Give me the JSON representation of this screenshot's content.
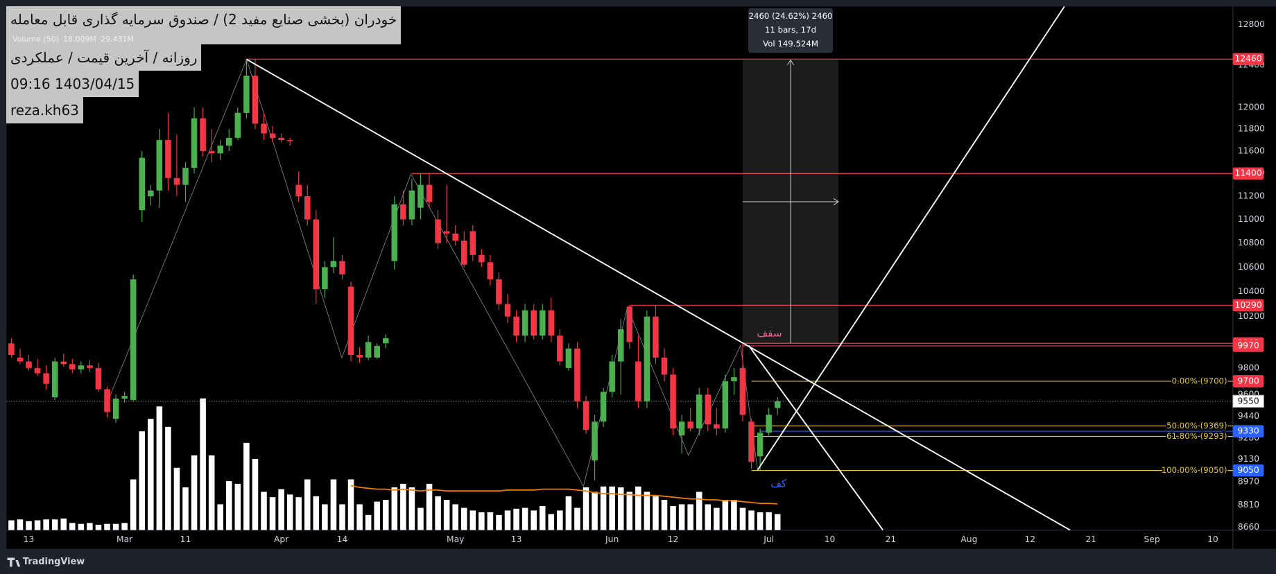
{
  "chart_data": {
    "type": "candlestick",
    "title_lines": [
      "خودران (بخشی صنایع مفید 2) / صندوق سرمایه گذاری قابل معامله",
      "روزانه / آخرین قیمت / عملکردی",
      "1403/04/15 09:16",
      "reza.kh63"
    ],
    "log_scale": true,
    "grid": false,
    "up_color": "#4caf50",
    "down_color": "#f23645",
    "volume_color": "#ffffff",
    "volume_ma_color": "#f57c00",
    "ylim": [
      8640,
      12980
    ],
    "yticks": [
      12800,
      12400,
      12000,
      11800,
      11600,
      11400,
      11200,
      11000,
      10800,
      10600,
      10400,
      10200,
      9800,
      9600,
      9440,
      9280,
      9130,
      8970,
      8810,
      8660
    ],
    "xlim": [
      -0.56,
      140.3
    ],
    "xticks": [
      {
        "value": 2,
        "label": "13"
      },
      {
        "value": 13,
        "label": "Mar"
      },
      {
        "value": 20,
        "label": "11"
      },
      {
        "value": 31,
        "label": "Apr"
      },
      {
        "value": 38,
        "label": "14"
      },
      {
        "value": 51,
        "label": "May"
      },
      {
        "value": 58,
        "label": "13"
      },
      {
        "value": 69,
        "label": "Jun"
      },
      {
        "value": 76,
        "label": "12"
      },
      {
        "value": 87,
        "label": "Jul"
      },
      {
        "value": 94,
        "label": "10"
      },
      {
        "value": 101,
        "label": "21"
      },
      {
        "value": 110,
        "label": "Aug"
      },
      {
        "value": 117,
        "label": "12"
      },
      {
        "value": 124,
        "label": "21"
      },
      {
        "value": 131,
        "label": "Sep"
      },
      {
        "value": 138,
        "label": "10"
      }
    ],
    "open": [
      9990,
      9880,
      9850,
      9800,
      9760,
      9580,
      9850,
      9830,
      9790,
      9820,
      9800,
      9640,
      9420,
      9570,
      9560,
      11080,
      11200,
      11250,
      11700,
      11360,
      11300,
      11450,
      11900,
      11600,
      11580,
      11650,
      11720,
      11950,
      12300,
      11850,
      11760,
      11720,
      11700,
      11300,
      11200,
      11000,
      10420,
      10600,
      10650,
      10440,
      9900,
      9880,
      9880,
      9990,
      10650,
      11130,
      11000,
      11100,
      11300,
      11000,
      10900,
      10880,
      10820,
      10900,
      10700,
      10640,
      10500,
      10300,
      10200,
      10050,
      10250,
      10050,
      10250,
      10050,
      9800,
      9950,
      9550,
      9120,
      9400,
      9620,
      9850,
      10280,
      9850,
      9550,
      10200,
      9880,
      9750,
      9300,
      9400,
      9350,
      9600,
      9380,
      9350,
      9700,
      9800,
      9400,
      9150,
      9320,
      9500
    ],
    "high": [
      10030,
      9950,
      9900,
      9870,
      9820,
      9880,
      9910,
      9870,
      9850,
      9860,
      9840,
      9660,
      9600,
      9620,
      10540,
      11600,
      11300,
      11800,
      11950,
      11750,
      11500,
      12000,
      12000,
      11800,
      11700,
      11800,
      12000,
      12460,
      12460,
      11950,
      11830,
      11760,
      11720,
      11420,
      11300,
      11080,
      10650,
      10850,
      10700,
      10480,
      9960,
      10050,
      9990,
      10060,
      11200,
      11250,
      11350,
      11400,
      11400,
      11080,
      11300,
      10950,
      10900,
      10950,
      10750,
      10700,
      10560,
      10380,
      10250,
      10300,
      10300,
      10300,
      10350,
      10100,
      9990,
      10000,
      9590,
      9450,
      9650,
      9900,
      10180,
      10290,
      10050,
      10250,
      10290,
      9950,
      9800,
      9450,
      9500,
      9650,
      9650,
      9500,
      9750,
      9800,
      9990,
      9420,
      9350,
      9500,
      9580
    ],
    "low": [
      9880,
      9830,
      9780,
      9740,
      9640,
      9560,
      9810,
      9760,
      9760,
      9770,
      9620,
      9430,
      9390,
      9540,
      9550,
      10980,
      11120,
      11100,
      11250,
      11200,
      11150,
      11400,
      11550,
      11500,
      11520,
      11600,
      11700,
      11900,
      11800,
      11700,
      11680,
      11680,
      11650,
      11150,
      10950,
      10300,
      10350,
      10550,
      10500,
      9850,
      9840,
      9860,
      9870,
      9950,
      10580,
      10950,
      10950,
      11000,
      11100,
      10750,
      10800,
      10780,
      10600,
      10650,
      10600,
      10450,
      10250,
      10150,
      10000,
      10000,
      10020,
      10020,
      10000,
      9820,
      9780,
      9500,
      9310,
      8980,
      9360,
      9580,
      9600,
      9950,
      9500,
      9500,
      9830,
      9700,
      9300,
      9170,
      9330,
      9300,
      9330,
      9300,
      9320,
      9600,
      9400,
      9060,
      9050,
      9300,
      9450
    ],
    "close": [
      9900,
      9850,
      9800,
      9760,
      9680,
      9850,
      9830,
      9790,
      9820,
      9800,
      9640,
      9470,
      9570,
      9590,
      10500,
      11540,
      11250,
      11700,
      11360,
      11300,
      11450,
      11900,
      11600,
      11580,
      11650,
      11720,
      11950,
      12300,
      11850,
      11760,
      11720,
      11700,
      11690,
      11200,
      11000,
      10420,
      10600,
      10650,
      10540,
      9900,
      9880,
      10000,
      9970,
      10030,
      11130,
      11000,
      11250,
      11300,
      11150,
      10800,
      10880,
      10820,
      10620,
      10700,
      10640,
      10500,
      10300,
      10200,
      10050,
      10250,
      10050,
      10250,
      10050,
      9850,
      9950,
      9550,
      9340,
      9400,
      9620,
      9850,
      10100,
      10000,
      9550,
      10200,
      9880,
      9750,
      9350,
      9400,
      9350,
      9600,
      9380,
      9350,
      9700,
      9730,
      9450,
      9110,
      9320,
      9450,
      9550
    ],
    "volume": [
      11,
      12,
      10,
      11,
      12,
      12,
      13,
      8,
      7,
      8,
      6,
      7,
      7,
      8,
      57,
      111,
      125,
      139,
      116,
      70,
      48,
      84,
      148,
      84,
      29,
      55,
      52,
      98,
      80,
      43,
      37,
      46,
      40,
      37,
      57,
      38,
      29,
      57,
      29,
      57,
      29,
      17,
      32,
      34,
      48,
      52,
      48,
      25,
      52,
      38,
      34,
      29,
      25,
      22,
      20,
      20,
      17,
      22,
      24,
      25,
      22,
      27,
      18,
      22,
      38,
      25,
      48,
      43,
      49,
      49,
      48,
      43,
      49,
      43,
      38,
      34,
      27,
      29,
      29,
      43,
      29,
      25,
      34,
      34,
      25,
      22,
      20,
      20,
      18.009
    ],
    "volume_ma": [
      null,
      null,
      null,
      null,
      null,
      null,
      null,
      null,
      null,
      null,
      null,
      null,
      null,
      null,
      null,
      null,
      null,
      null,
      null,
      null,
      null,
      null,
      null,
      null,
      null,
      null,
      null,
      null,
      null,
      null,
      null,
      null,
      null,
      null,
      null,
      null,
      null,
      null,
      null,
      50,
      48,
      47,
      46,
      46,
      45,
      46,
      45,
      44,
      45,
      45,
      44,
      44,
      44,
      44,
      44,
      44,
      44,
      45,
      45,
      45,
      45,
      46,
      46,
      46,
      46,
      45,
      44,
      42,
      41,
      41,
      40,
      40,
      39,
      39,
      39,
      38,
      37,
      36,
      35,
      35,
      34,
      34,
      33,
      33,
      32,
      31,
      30,
      30,
      29.431
    ],
    "volume_ylim": [
      0,
      180
    ],
    "volume_legend": [
      "Volume (50)",
      "18.009M",
      "29.431M"
    ],
    "last_price": 9550,
    "price_labels": [
      {
        "value": 12460,
        "color": "#f23645"
      },
      {
        "value": 11400,
        "color": "#f23645"
      },
      {
        "value": 10290,
        "color": "#f23645"
      },
      {
        "value": 9990,
        "color": "#f23645"
      },
      {
        "value": 9970,
        "color": "#f23645"
      },
      {
        "value": 9700,
        "color": "#f23645"
      },
      {
        "value": 9330,
        "color": "#2962ff"
      },
      {
        "value": 9050,
        "color": "#2962ff"
      }
    ],
    "hlines": [
      {
        "value": 12460,
        "start": 27,
        "color": "#f23645"
      },
      {
        "value": 11400,
        "start": 46,
        "color": "#f23645"
      },
      {
        "value": 10290,
        "start": 71,
        "color": "#f23645"
      },
      {
        "value": 9990,
        "start": 84,
        "color": "#f23645"
      },
      {
        "value": 9970,
        "start": 84,
        "color": "#f23645"
      },
      {
        "value": 9330,
        "start": 86,
        "color": "#2962ff"
      }
    ],
    "fib": {
      "color": "#e8c930",
      "start": 85,
      "levels": [
        {
          "label": "0.00% (9700)",
          "value": 9700
        },
        {
          "label": "50.00% (9369)",
          "value": 9369
        },
        {
          "label": "61.80% (9293)",
          "value": 9293
        },
        {
          "label": "100.00% (9050)",
          "value": 9050
        }
      ]
    },
    "measure": {
      "from_bar": 84,
      "to_bar": 95,
      "low": 9990,
      "high": 12450,
      "lines": [
        "2460 (24.62%) 2460",
        "11 bars, 17d",
        "Vol 149.524M"
      ]
    },
    "annotations": [
      "سقف",
      "کف"
    ],
    "brand": "TradingView"
  }
}
